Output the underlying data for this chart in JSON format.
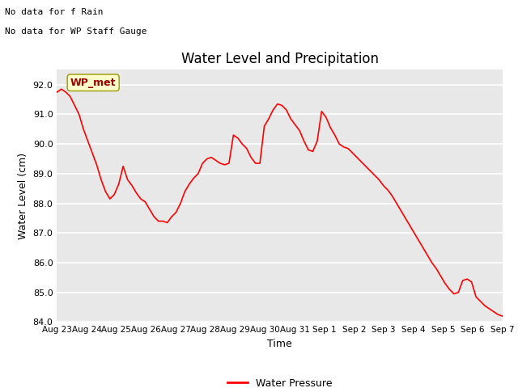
{
  "title": "Water Level and Precipitation",
  "xlabel": "Time",
  "ylabel": "Water Level (cm)",
  "line_color": "#ff0000",
  "line_width": 1.2,
  "background_color": "#e8e8e8",
  "ylim": [
    84.0,
    92.5
  ],
  "yticks": [
    84.0,
    85.0,
    86.0,
    87.0,
    88.0,
    89.0,
    90.0,
    91.0,
    92.0
  ],
  "annotation_text_line1": "No data for f Rain",
  "annotation_text_line2": "No data for WP Staff Gauge",
  "legend_label": "Water Pressure",
  "legend_color": "#ff0000",
  "wp_met_label": "WP_met",
  "wp_met_box_facecolor": "#ffffcc",
  "wp_met_box_edgecolor": "#999900",
  "wp_met_text_color": "#990000",
  "x_dates": [
    "Aug 23",
    "Aug 24",
    "Aug 25",
    "Aug 26",
    "Aug 27",
    "Aug 28",
    "Aug 29",
    "Aug 30",
    "Aug 31",
    "Sep 1",
    "Sep 2",
    "Sep 3",
    "Sep 4",
    "Sep 5",
    "Sep 6",
    "Sep 7"
  ],
  "x_numeric": [
    0,
    1,
    2,
    3,
    4,
    5,
    6,
    7,
    8,
    9,
    10,
    11,
    12,
    13,
    14,
    15
  ],
  "y_values": [
    91.75,
    91.85,
    91.75,
    91.6,
    91.3,
    91.0,
    90.5,
    90.1,
    89.7,
    89.3,
    88.8,
    88.4,
    88.15,
    88.3,
    88.65,
    89.25,
    88.8,
    88.6,
    88.35,
    88.15,
    88.05,
    87.8,
    87.55,
    87.4,
    87.4,
    87.35,
    87.55,
    87.7,
    88.0,
    88.4,
    88.65,
    88.85,
    89.0,
    89.35,
    89.5,
    89.55,
    89.45,
    89.35,
    89.3,
    89.35,
    90.3,
    90.2,
    90.0,
    89.85,
    89.55,
    89.35,
    89.35,
    90.6,
    90.85,
    91.15,
    91.35,
    91.3,
    91.15,
    90.85,
    90.65,
    90.45,
    90.1,
    89.8,
    89.75,
    90.1,
    91.1,
    90.9,
    90.55,
    90.3,
    90.0,
    89.9,
    89.85,
    89.7,
    89.55,
    89.4,
    89.25,
    89.1,
    88.95,
    88.8,
    88.6,
    88.45,
    88.25,
    88.0,
    87.75,
    87.5,
    87.25,
    87.0,
    86.75,
    86.5,
    86.25,
    86.0,
    85.8,
    85.55,
    85.3,
    85.1,
    84.95,
    85.0,
    85.4,
    85.45,
    85.35,
    84.85,
    84.7,
    84.55,
    84.45,
    84.35,
    84.25,
    84.2
  ],
  "title_fontsize": 12,
  "label_fontsize": 9,
  "tick_fontsize": 8,
  "annot_fontsize": 8
}
